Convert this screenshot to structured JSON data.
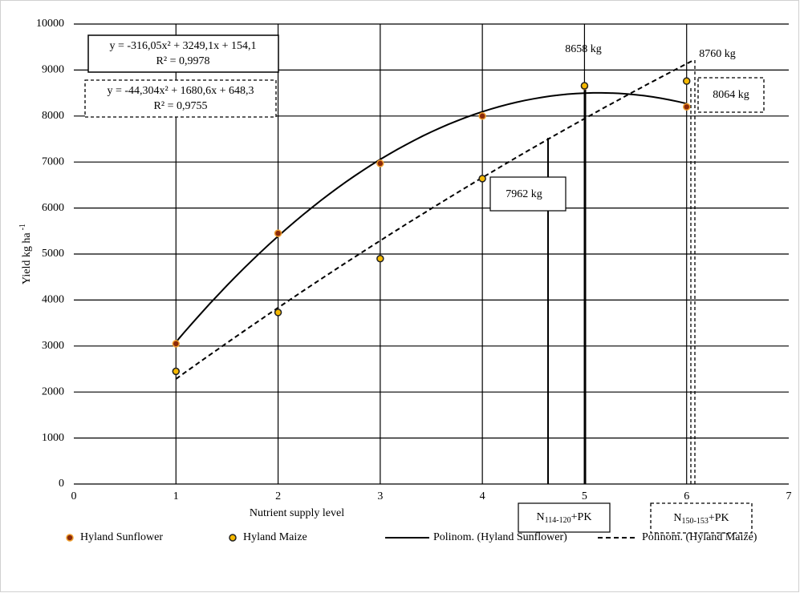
{
  "chart_data": {
    "type": "scatter",
    "x_label": "Nutrient supply level",
    "y_label": "Yield kg ha",
    "y_label_sup": "-1",
    "xlim": [
      0,
      7
    ],
    "xticks": [
      0,
      1,
      2,
      3,
      4,
      5,
      6,
      7
    ],
    "ylim": [
      0,
      10000
    ],
    "yticks": [
      0,
      1000,
      2000,
      3000,
      4000,
      5000,
      6000,
      7000,
      8000,
      9000,
      10000
    ],
    "grid": true,
    "series": [
      {
        "name": "Hyland Sunflower",
        "color": "#8b2a0a",
        "edge": "#f0a030",
        "x": [
          1,
          2,
          3,
          4,
          5,
          6
        ],
        "values": [
          3050,
          5450,
          6970,
          8000,
          8650,
          8200
        ]
      },
      {
        "name": "Hyland Maize",
        "color": "#f5b800",
        "edge": "#222222",
        "x": [
          1,
          2,
          3,
          4,
          5,
          6
        ],
        "values": [
          2450,
          3730,
          4900,
          6640,
          8658,
          8760
        ]
      }
    ],
    "trendlines": [
      {
        "name": "Polinom. (Hyland Sunflower)",
        "dash": false,
        "equation": "y = -316,05x² + 3249,1x + 154,1",
        "r2": "R² = 0,9978",
        "coefficients": [
          -316.05,
          3249.1,
          154.1
        ],
        "x_range": [
          1,
          6
        ]
      },
      {
        "name": "Polinom. (Hyland Maize)",
        "dash": true,
        "equation": "y = -44,304x² + 1680,6x + 648,3",
        "r2": "R² = 0,9755",
        "coefficients": [
          -44.304,
          1680.6,
          648.3
        ],
        "x_range": [
          1,
          6.05
        ]
      }
    ],
    "annotations": [
      "8658 kg",
      "8760 kg",
      "8064 kg",
      "7962 kg"
    ],
    "level_labels": [
      {
        "main": "N",
        "sub": "114-120",
        "tail": "+PK"
      },
      {
        "main": "N",
        "sub": "150-153",
        "tail": "+PK"
      }
    ]
  }
}
